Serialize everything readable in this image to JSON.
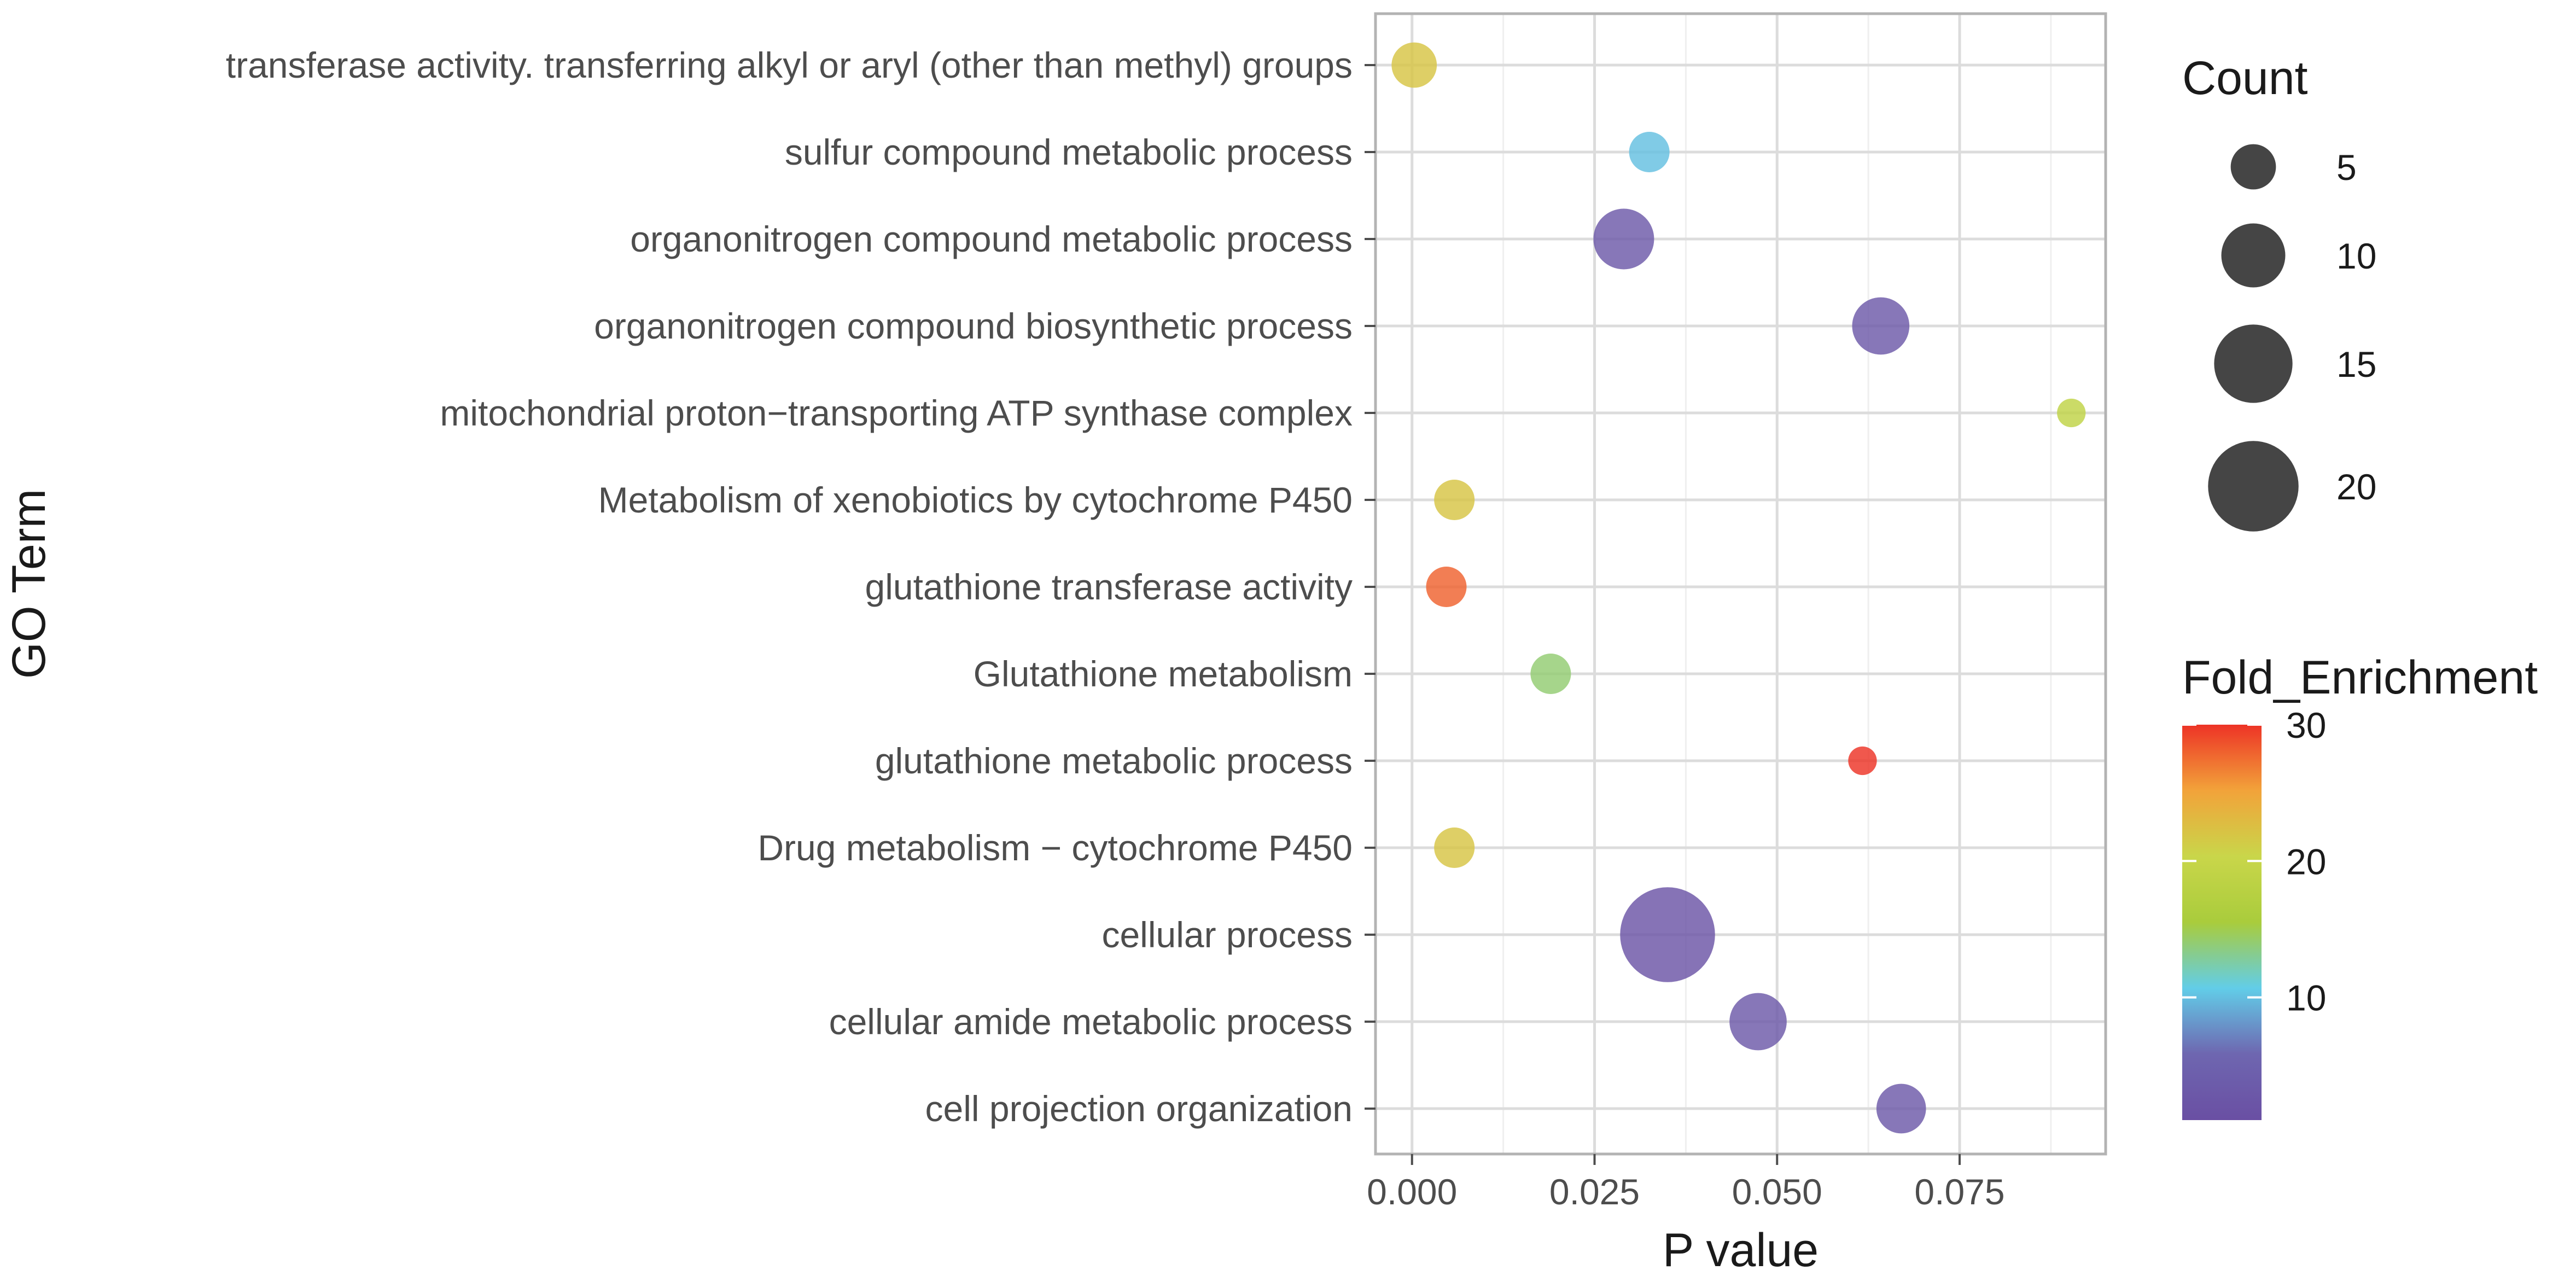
{
  "chart_data": {
    "type": "scatter",
    "subtype": "bubble",
    "xlabel": "P value",
    "ylabel": "GO Term",
    "xlim": [
      -0.005,
      0.095
    ],
    "x_ticks": [
      0.0,
      0.025,
      0.05,
      0.075
    ],
    "x_tick_labels": [
      "0.000",
      "0.025",
      "0.050",
      "0.075"
    ],
    "grid": true,
    "categories": [
      "transferase activity. transferring alkyl or aryl (other than methyl) groups",
      "sulfur compound metabolic process",
      "organonitrogen compound metabolic process",
      "organonitrogen compound biosynthetic process",
      "mitochondrial proton−transporting ATP synthase complex",
      "Metabolism of xenobiotics by cytochrome P450",
      "glutathione transferase activity",
      "Glutathione metabolism",
      "glutathione metabolic process",
      "Drug metabolism − cytochrome P450",
      "cellular process",
      "cellular amide metabolic process",
      "cell projection organization"
    ],
    "points": [
      {
        "term": "transferase activity. transferring alkyl or aryl (other than methyl) groups",
        "p_value": 0.0003,
        "count": 5,
        "fold_enrichment": 22
      },
      {
        "term": "sulfur compound metabolic process",
        "p_value": 0.0325,
        "count": 4,
        "fold_enrichment": 10
      },
      {
        "term": "organonitrogen compound metabolic process",
        "p_value": 0.029,
        "count": 9,
        "fold_enrichment": 3
      },
      {
        "term": "organonitrogen compound biosynthetic process",
        "p_value": 0.0642,
        "count": 8,
        "fold_enrichment": 3
      },
      {
        "term": "mitochondrial proton−transporting ATP synthase complex",
        "p_value": 0.0903,
        "count": 2,
        "fold_enrichment": 19
      },
      {
        "term": "Metabolism of xenobiotics by cytochrome P450",
        "p_value": 0.0058,
        "count": 4,
        "fold_enrichment": 22
      },
      {
        "term": "glutathione transferase activity",
        "p_value": 0.0047,
        "count": 4,
        "fold_enrichment": 28
      },
      {
        "term": "Glutathione metabolism",
        "p_value": 0.019,
        "count": 4,
        "fold_enrichment": 14
      },
      {
        "term": "glutathione metabolic process",
        "p_value": 0.0617,
        "count": 2,
        "fold_enrichment": 30
      },
      {
        "term": "Drug metabolism − cytochrome P450",
        "p_value": 0.0058,
        "count": 4,
        "fold_enrichment": 22
      },
      {
        "term": "cellular process",
        "p_value": 0.035,
        "count": 22,
        "fold_enrichment": 2
      },
      {
        "term": "cellular amide metabolic process",
        "p_value": 0.0474,
        "count": 8,
        "fold_enrichment": 3
      },
      {
        "term": "cell projection organization",
        "p_value": 0.067,
        "count": 6,
        "fold_enrichment": 3
      }
    ],
    "size_legend": {
      "title": "Count",
      "values": [
        5,
        10,
        15,
        20
      ],
      "labels": [
        "5",
        "10",
        "15",
        "20"
      ]
    },
    "color_legend": {
      "title": "Fold_Enrichment",
      "range": [
        1,
        30
      ],
      "ticks": [
        10,
        20,
        30
      ],
      "tick_labels": [
        "10",
        "20",
        "30"
      ],
      "palette": [
        "#6a4fa3",
        "#6e66b0",
        "#62cde8",
        "#a9cc3c",
        "#c9d64a",
        "#f2a33a",
        "#ed3326"
      ]
    },
    "point_opacity": 0.82,
    "colors": {
      "panel_border": "#b3b3b3",
      "grid_major": "#dcdcdc",
      "grid_minor": "#efefef",
      "tick": "#4d4d4d",
      "legend_key": "#454545"
    }
  }
}
